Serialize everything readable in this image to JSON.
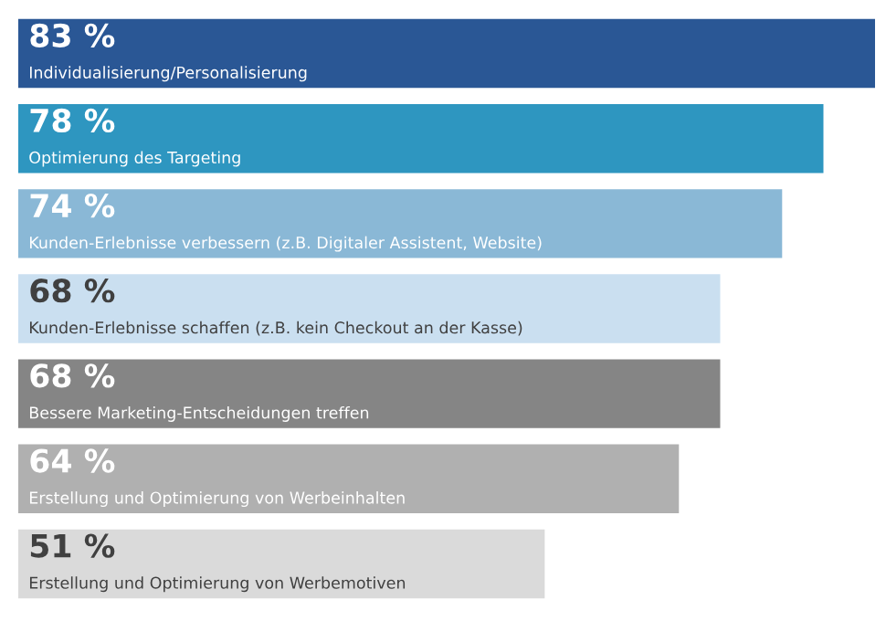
{
  "chart_data": {
    "type": "bar",
    "orientation": "horizontal",
    "categories": [
      "Individualisierung/Personalisierung",
      "Optimierung des Targeting",
      "Kunden-Erlebnisse verbessern (z.B. Digitaler Assistent, Website)",
      "Kunden-Erlebnisse schaffen (z.B. kein Checkout an der Kasse)",
      "Bessere Marketing-Entscheidungen treffen",
      "Erstellung und Optimierung von Werbeinhalten",
      "Erstellung und Optimierung von Werbemotiven"
    ],
    "values": [
      83,
      78,
      74,
      68,
      68,
      64,
      51
    ],
    "value_labels": [
      "83 %",
      "78 %",
      "74 %",
      "68 %",
      "68 %",
      "64 %",
      "51 %"
    ],
    "colors": [
      "#2a5795",
      "#2e96c0",
      "#8ab8d6",
      "#cadff0",
      "#858585",
      "#b0b0b0",
      "#dadada"
    ]
  }
}
